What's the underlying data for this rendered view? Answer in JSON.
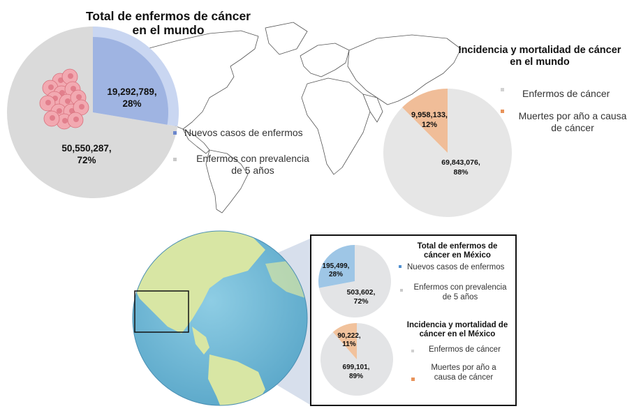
{
  "colors": {
    "blue": "#9fb4e2",
    "blue_light": "#c9d6f1",
    "gray": "#dadada",
    "gray_light": "#e6e6e6",
    "orange": "#f0bd98",
    "mx_blue": "#9ec6e6",
    "mx_gray": "#e3e4e6",
    "mx_orange": "#f1c29c"
  },
  "chart_data": [
    {
      "type": "pie",
      "title": "Total de enfermos de cáncer en el mundo",
      "title_lines": [
        "Total de enfermos de cáncer",
        "en el mundo"
      ],
      "slices": [
        {
          "label": "Nuevos casos de enfermos",
          "value": 19292789,
          "percent": 28,
          "value_text": "19,292,789,",
          "percent_text": "28%"
        },
        {
          "label": "Enfermos con prevalencia de 5 años",
          "label_lines": [
            "Enfermos con prevalencia",
            "de 5 años"
          ],
          "value": 50550287,
          "percent": 72,
          "value_text": "50,550,287,",
          "percent_text": "72%"
        }
      ]
    },
    {
      "type": "pie",
      "title": "Incidencia y mortalidad de cáncer en el mundo",
      "title_lines": [
        "Incidencia y mortalidad de cáncer",
        "en el mundo"
      ],
      "slices": [
        {
          "label": "Enfermos de cáncer",
          "value": 69843076,
          "percent": 88,
          "value_text": "69,843,076,",
          "percent_text": "88%"
        },
        {
          "label": "Muertes por año a causa de cáncer",
          "label_lines": [
            "Muertes por año a causa",
            "de cáncer"
          ],
          "value": 9958133,
          "percent": 12,
          "value_text": "9,958,133,",
          "percent_text": "12%"
        }
      ]
    },
    {
      "type": "pie",
      "title": "Total de enfermos de cáncer en México",
      "title_lines": [
        "Total de enfermos de",
        "cáncer en México"
      ],
      "slices": [
        {
          "label": "Nuevos casos de enfermos",
          "value": 195499,
          "percent": 28,
          "value_text": "195,499,",
          "percent_text": "28%"
        },
        {
          "label": "Enfermos con prevalencia de 5 años",
          "label_lines": [
            "Enfermos con prevalencia",
            "de 5 años"
          ],
          "value": 503602,
          "percent": 72,
          "value_text": "503,602,",
          "percent_text": "72%"
        }
      ]
    },
    {
      "type": "pie",
      "title": "Incidencia y mortalidad de cáncer en el México",
      "title_lines": [
        "Incidencia y mortalidad de",
        "cáncer en el México"
      ],
      "slices": [
        {
          "label": "Enfermos de cáncer",
          "value": 699101,
          "percent": 89,
          "value_text": "699,101,",
          "percent_text": "89%"
        },
        {
          "label": "Muertes por año a causa de cáncer",
          "label_lines": [
            "Muertes por año a",
            "causa de cáncer"
          ],
          "value": 90222,
          "percent": 11,
          "value_text": "90,222,",
          "percent_text": "11%"
        }
      ]
    }
  ]
}
